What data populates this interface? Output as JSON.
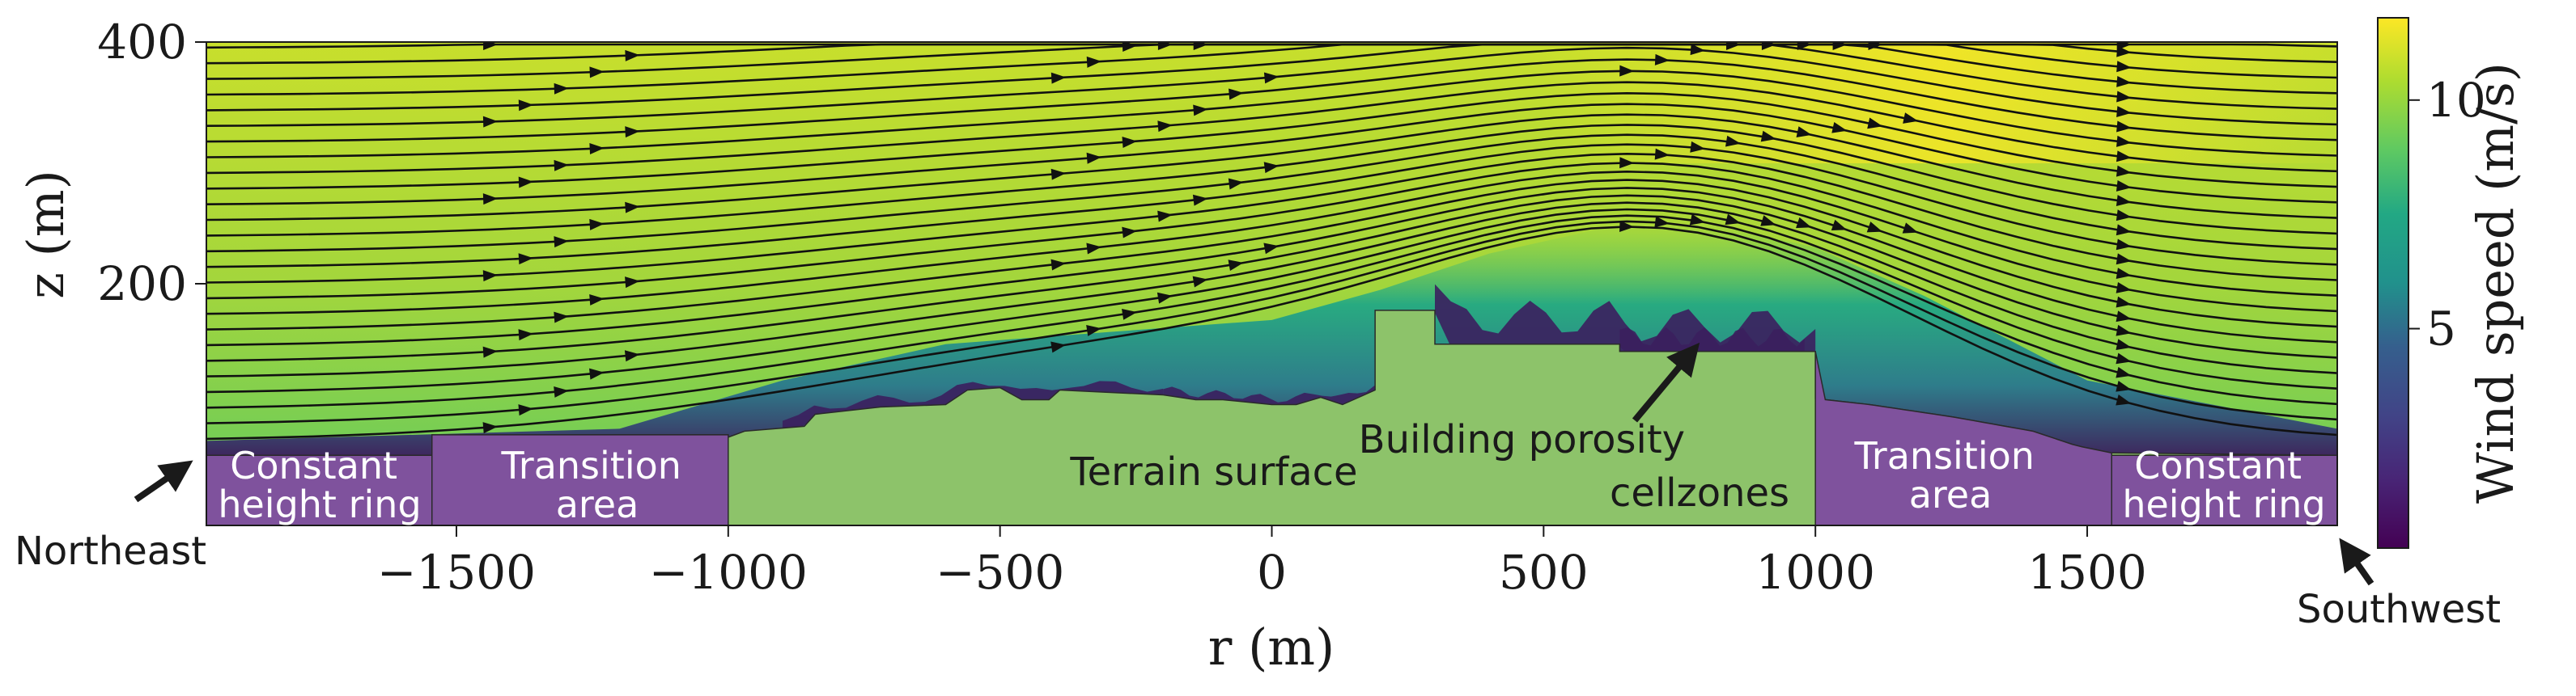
{
  "chart_data": {
    "type": "heatmap",
    "title": "",
    "xlabel": "r (m)",
    "ylabel": "z (m)",
    "xlim": [
      -1960,
      1960
    ],
    "ylim": [
      0,
      400
    ],
    "x_ticks": [
      {
        "value": -1500,
        "label": "−1500"
      },
      {
        "value": -1000,
        "label": "−1000"
      },
      {
        "value": -500,
        "label": "−500"
      },
      {
        "value": 0,
        "label": "0"
      },
      {
        "value": 500,
        "label": "500"
      },
      {
        "value": 1000,
        "label": "1000"
      },
      {
        "value": 1500,
        "label": "1500"
      }
    ],
    "y_ticks": [
      {
        "value": 200,
        "label": "200"
      },
      {
        "value": 400,
        "label": "400"
      }
    ],
    "colorbar": {
      "label": "Wind speed (m/s)",
      "min": 0.2,
      "max": 11.8,
      "colormap": "viridis",
      "ticks": [
        {
          "value": 5,
          "label": "5"
        },
        {
          "value": 10,
          "label": "10"
        }
      ]
    },
    "colors": {
      "terrain": "#8dc36a",
      "ring": "#7f529d",
      "low_wind": "#3b1f5e"
    },
    "terrain_profile": {
      "r": [
        -1960,
        -1545,
        -1545,
        -1000,
        -1000,
        -970,
        -860,
        -840,
        -720,
        -600,
        -560,
        -500,
        -460,
        -410,
        -390,
        -200,
        -140,
        -90,
        0,
        45,
        90,
        130,
        190,
        190,
        300,
        300,
        640,
        640,
        1000,
        1000,
        1100,
        1250,
        1400,
        1480,
        1545,
        1960
      ],
      "z": [
        58,
        58,
        75,
        75,
        73,
        78,
        82,
        92,
        98,
        100,
        112,
        114,
        104,
        104,
        112,
        108,
        104,
        104,
        100,
        100,
        106,
        100,
        112,
        178,
        178,
        150,
        150,
        144,
        144,
        105,
        100,
        90,
        78,
        66,
        60,
        58
      ]
    },
    "boundary_layer_top": {
      "r": [
        -1960,
        -1200,
        -900,
        -600,
        -300,
        0,
        200,
        400,
        600,
        800,
        1000,
        1200,
        1500,
        1960
      ],
      "z": [
        70,
        80,
        120,
        150,
        160,
        170,
        195,
        225,
        245,
        250,
        230,
        190,
        120,
        80
      ]
    },
    "zones": [
      {
        "name": "ring-left",
        "label_lines": [
          "Constant",
          "height ring"
        ],
        "r": [
          -1960,
          -1545
        ],
        "z_top": 58
      },
      {
        "name": "transition-left",
        "label_lines": [
          "Transition",
          "area"
        ],
        "r": [
          -1545,
          -1000
        ],
        "z_top": 75
      },
      {
        "name": "transition-right",
        "label_lines": [
          "Transition",
          "area"
        ],
        "r": [
          1000,
          1545
        ],
        "z_top": "terrain"
      },
      {
        "name": "ring-right",
        "label_lines": [
          "Constant",
          "height ring"
        ],
        "r": [
          1545,
          1960
        ],
        "z_top": 58
      }
    ],
    "annotations": [
      {
        "name": "terrain-surface-label",
        "text": "Terrain surface"
      },
      {
        "name": "building-porosity-label",
        "lines": [
          "Building porosity",
          "cellzones"
        ]
      },
      {
        "name": "northeast-label",
        "text": "Northeast"
      },
      {
        "name": "southwest-label",
        "text": "Southwest"
      }
    ]
  }
}
